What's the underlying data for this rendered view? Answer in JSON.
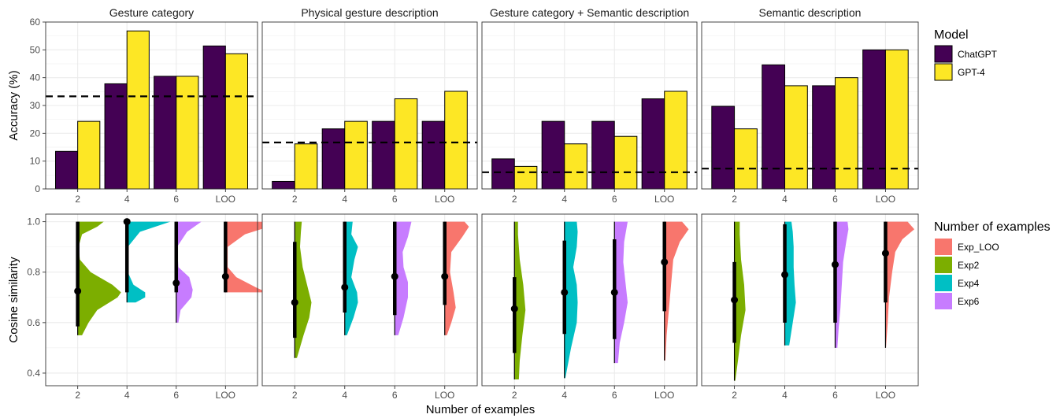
{
  "xlabel": "Number of examples",
  "legend_model": {
    "title": "Model",
    "items": [
      {
        "label": "ChatGPT",
        "color": "#440154"
      },
      {
        "label": "GPT-4",
        "color": "#FDE725"
      }
    ]
  },
  "legend_examples": {
    "title": "Number of examples",
    "items": [
      {
        "label": "Exp_LOO",
        "color": "#F8766D"
      },
      {
        "label": "Exp2",
        "color": "#7CAE00"
      },
      {
        "label": "Exp4",
        "color": "#00BFC4"
      },
      {
        "label": "Exp6",
        "color": "#C77CFF"
      }
    ]
  },
  "chart_data": [
    {
      "type": "bar",
      "ylabel": "Accuracy (%)",
      "ylim": [
        0,
        60
      ],
      "yticks": [
        0,
        10,
        20,
        30,
        40,
        50,
        60
      ],
      "categories": [
        "2",
        "4",
        "6",
        "LOO"
      ],
      "grid": true,
      "legend_position": "right",
      "panels": [
        {
          "title": "Gesture category",
          "baseline": 33.3,
          "series": [
            {
              "name": "ChatGPT",
              "values": [
                13.5,
                37.8,
                40.5,
                51.4
              ]
            },
            {
              "name": "GPT-4",
              "values": [
                24.3,
                56.8,
                40.5,
                48.6
              ]
            }
          ]
        },
        {
          "title": "Physical gesture description",
          "baseline": 16.7,
          "series": [
            {
              "name": "ChatGPT",
              "values": [
                2.7,
                21.6,
                24.3,
                24.3
              ]
            },
            {
              "name": "GPT-4",
              "values": [
                16.2,
                24.3,
                32.4,
                35.1
              ]
            }
          ]
        },
        {
          "title": "Gesture category + Semantic description",
          "baseline": 6.0,
          "series": [
            {
              "name": "ChatGPT",
              "values": [
                10.8,
                24.3,
                24.3,
                32.4
              ]
            },
            {
              "name": "GPT-4",
              "values": [
                8.1,
                16.2,
                18.9,
                35.1
              ]
            }
          ]
        },
        {
          "title": "Semantic description",
          "baseline": 7.3,
          "series": [
            {
              "name": "ChatGPT",
              "values": [
                29.7,
                44.6,
                37.1,
                50.0
              ]
            },
            {
              "name": "GPT-4",
              "values": [
                21.6,
                37.1,
                40.0,
                50.0
              ]
            }
          ]
        }
      ]
    },
    {
      "type": "half-violin with point-range",
      "ylabel": "Cosine similarity",
      "ylim": [
        0.35,
        1.03
      ],
      "yticks": [
        0.4,
        0.6,
        0.8,
        1.0
      ],
      "yticklabels": [
        "0.4",
        "0.6",
        "0.8",
        "1.0"
      ],
      "categories": [
        "2",
        "4",
        "6",
        "LOO"
      ],
      "grid": true,
      "legend_position": "right",
      "panels": [
        {
          "title": "Gesture category",
          "groups": [
            {
              "category": "2",
              "series": "Exp2",
              "median": 0.725,
              "low": 0.585,
              "high": 1.0,
              "vmin": 0.55,
              "vmax": 1.0,
              "density": [
                [
                  0.55,
                  0.1
                ],
                [
                  0.6,
                  0.25
                ],
                [
                  0.65,
                  0.45
                ],
                [
                  0.7,
                  0.92
                ],
                [
                  0.72,
                  1.0
                ],
                [
                  0.75,
                  0.8
                ],
                [
                  0.8,
                  0.3
                ],
                [
                  0.85,
                  0.05
                ],
                [
                  0.9,
                  0.02
                ],
                [
                  0.95,
                  0.1
                ],
                [
                  0.98,
                  0.45
                ],
                [
                  1.0,
                  0.6
                ]
              ]
            },
            {
              "category": "4",
              "series": "Exp4",
              "median": 1.0,
              "low": 0.72,
              "high": 1.0,
              "vmin": 0.68,
              "vmax": 1.0,
              "density": [
                [
                  0.68,
                  0.2
                ],
                [
                  0.7,
                  0.42
                ],
                [
                  0.72,
                  0.42
                ],
                [
                  0.75,
                  0.15
                ],
                [
                  0.8,
                  0.02
                ],
                [
                  0.9,
                  0.02
                ],
                [
                  0.96,
                  0.3
                ],
                [
                  1.0,
                  1.0
                ]
              ]
            },
            {
              "category": "6",
              "series": "Exp6",
              "median": 0.757,
              "low": 0.72,
              "high": 1.0,
              "vmin": 0.6,
              "vmax": 1.0,
              "density": [
                [
                  0.6,
                  0.05
                ],
                [
                  0.65,
                  0.1
                ],
                [
                  0.7,
                  0.35
                ],
                [
                  0.73,
                  0.38
                ],
                [
                  0.78,
                  0.3
                ],
                [
                  0.82,
                  0.05
                ],
                [
                  0.9,
                  0.02
                ],
                [
                  0.96,
                  0.25
                ],
                [
                  1.0,
                  0.58
                ]
              ]
            },
            {
              "category": "LOO",
              "series": "Exp_LOO",
              "median": 0.783,
              "low": 0.72,
              "high": 1.0,
              "vmin": 0.72,
              "vmax": 1.0,
              "density": [
                [
                  0.72,
                  0.95
                ],
                [
                  0.74,
                  0.7
                ],
                [
                  0.78,
                  0.25
                ],
                [
                  0.82,
                  0.05
                ],
                [
                  0.9,
                  0.05
                ],
                [
                  0.95,
                  0.45
                ],
                [
                  0.98,
                  1.0
                ],
                [
                  1.0,
                  0.9
                ]
              ]
            }
          ]
        },
        {
          "title": "Physical gesture description",
          "groups": [
            {
              "category": "2",
              "series": "Exp2",
              "median": 0.68,
              "low": 0.54,
              "high": 0.92,
              "vmin": 0.46,
              "vmax": 1.0,
              "density": [
                [
                  0.46,
                  0.05
                ],
                [
                  0.55,
                  0.2
                ],
                [
                  0.62,
                  0.33
                ],
                [
                  0.68,
                  0.38
                ],
                [
                  0.75,
                  0.28
                ],
                [
                  0.82,
                  0.18
                ],
                [
                  0.9,
                  0.12
                ],
                [
                  0.96,
                  0.14
                ],
                [
                  1.0,
                  0.16
                ]
              ]
            },
            {
              "category": "4",
              "series": "Exp4",
              "median": 0.74,
              "low": 0.64,
              "high": 1.0,
              "vmin": 0.55,
              "vmax": 1.0,
              "density": [
                [
                  0.55,
                  0.05
                ],
                [
                  0.62,
                  0.2
                ],
                [
                  0.68,
                  0.3
                ],
                [
                  0.72,
                  0.28
                ],
                [
                  0.78,
                  0.15
                ],
                [
                  0.85,
                  0.22
                ],
                [
                  0.9,
                  0.3
                ],
                [
                  0.95,
                  0.15
                ],
                [
                  1.0,
                  0.18
                ]
              ]
            },
            {
              "category": "6",
              "series": "Exp6",
              "median": 0.783,
              "low": 0.63,
              "high": 1.0,
              "vmin": 0.55,
              "vmax": 1.0,
              "density": [
                [
                  0.55,
                  0.08
                ],
                [
                  0.62,
                  0.2
                ],
                [
                  0.7,
                  0.3
                ],
                [
                  0.76,
                  0.3
                ],
                [
                  0.82,
                  0.2
                ],
                [
                  0.88,
                  0.18
                ],
                [
                  0.94,
                  0.3
                ],
                [
                  1.0,
                  0.38
                ]
              ]
            },
            {
              "category": "LOO",
              "series": "Exp_LOO",
              "median": 0.783,
              "low": 0.67,
              "high": 1.0,
              "vmin": 0.55,
              "vmax": 1.0,
              "density": [
                [
                  0.55,
                  0.05
                ],
                [
                  0.6,
                  0.15
                ],
                [
                  0.66,
                  0.25
                ],
                [
                  0.72,
                  0.2
                ],
                [
                  0.8,
                  0.12
                ],
                [
                  0.88,
                  0.15
                ],
                [
                  0.94,
                  0.4
                ],
                [
                  0.98,
                  0.55
                ],
                [
                  1.0,
                  0.45
                ]
              ]
            }
          ]
        },
        {
          "title": "Gesture category + Semantic description",
          "groups": [
            {
              "category": "2",
              "series": "Exp2",
              "median": 0.655,
              "low": 0.48,
              "high": 0.78,
              "vmin": 0.375,
              "vmax": 1.0,
              "density": [
                [
                  0.375,
                  0.1
                ],
                [
                  0.45,
                  0.12
                ],
                [
                  0.55,
                  0.18
                ],
                [
                  0.65,
                  0.25
                ],
                [
                  0.75,
                  0.2
                ],
                [
                  0.85,
                  0.12
                ],
                [
                  0.95,
                  0.08
                ],
                [
                  1.0,
                  0.08
                ]
              ]
            },
            {
              "category": "4",
              "series": "Exp4",
              "median": 0.72,
              "low": 0.555,
              "high": 0.925,
              "vmin": 0.38,
              "vmax": 1.0,
              "density": [
                [
                  0.38,
                  0.02
                ],
                [
                  0.5,
                  0.15
                ],
                [
                  0.6,
                  0.28
                ],
                [
                  0.68,
                  0.3
                ],
                [
                  0.75,
                  0.28
                ],
                [
                  0.82,
                  0.2
                ],
                [
                  0.9,
                  0.28
                ],
                [
                  0.96,
                  0.3
                ],
                [
                  1.0,
                  0.28
                ]
              ]
            },
            {
              "category": "6",
              "series": "Exp6",
              "median": 0.72,
              "low": 0.535,
              "high": 0.93,
              "vmin": 0.44,
              "vmax": 1.0,
              "density": [
                [
                  0.44,
                  0.08
                ],
                [
                  0.52,
                  0.12
                ],
                [
                  0.6,
                  0.22
                ],
                [
                  0.68,
                  0.3
                ],
                [
                  0.76,
                  0.25
                ],
                [
                  0.84,
                  0.2
                ],
                [
                  0.92,
                  0.22
                ],
                [
                  1.0,
                  0.3
                ]
              ]
            },
            {
              "category": "LOO",
              "series": "Exp_LOO",
              "median": 0.84,
              "low": 0.645,
              "high": 1.0,
              "vmin": 0.45,
              "vmax": 1.0,
              "density": [
                [
                  0.45,
                  0.02
                ],
                [
                  0.55,
                  0.05
                ],
                [
                  0.65,
                  0.1
                ],
                [
                  0.75,
                  0.15
                ],
                [
                  0.85,
                  0.2
                ],
                [
                  0.92,
                  0.35
                ],
                [
                  0.97,
                  0.55
                ],
                [
                  1.0,
                  0.4
                ]
              ]
            }
          ]
        },
        {
          "title": "Semantic description",
          "groups": [
            {
              "category": "2",
              "series": "Exp2",
              "median": 0.69,
              "low": 0.52,
              "high": 0.84,
              "vmin": 0.37,
              "vmax": 1.0,
              "density": [
                [
                  0.37,
                  0.02
                ],
                [
                  0.45,
                  0.08
                ],
                [
                  0.55,
                  0.15
                ],
                [
                  0.65,
                  0.25
                ],
                [
                  0.75,
                  0.22
                ],
                [
                  0.85,
                  0.15
                ],
                [
                  0.95,
                  0.12
                ],
                [
                  1.0,
                  0.12
                ]
              ]
            },
            {
              "category": "4",
              "series": "Exp4",
              "median": 0.79,
              "low": 0.6,
              "high": 0.99,
              "vmin": 0.51,
              "vmax": 1.0,
              "density": [
                [
                  0.51,
                  0.1
                ],
                [
                  0.6,
                  0.18
                ],
                [
                  0.68,
                  0.25
                ],
                [
                  0.75,
                  0.22
                ],
                [
                  0.82,
                  0.2
                ],
                [
                  0.9,
                  0.2
                ],
                [
                  0.96,
                  0.18
                ],
                [
                  1.0,
                  0.15
                ]
              ]
            },
            {
              "category": "6",
              "series": "Exp6",
              "median": 0.83,
              "low": 0.6,
              "high": 1.0,
              "vmin": 0.5,
              "vmax": 1.0,
              "density": [
                [
                  0.5,
                  0.05
                ],
                [
                  0.58,
                  0.08
                ],
                [
                  0.66,
                  0.12
                ],
                [
                  0.75,
                  0.15
                ],
                [
                  0.84,
                  0.18
                ],
                [
                  0.92,
                  0.25
                ],
                [
                  0.97,
                  0.3
                ],
                [
                  1.0,
                  0.28
                ]
              ]
            },
            {
              "category": "LOO",
              "series": "Exp_LOO",
              "median": 0.875,
              "low": 0.68,
              "high": 1.0,
              "vmin": 0.5,
              "vmax": 1.0,
              "density": [
                [
                  0.5,
                  0.01
                ],
                [
                  0.6,
                  0.05
                ],
                [
                  0.7,
                  0.08
                ],
                [
                  0.8,
                  0.15
                ],
                [
                  0.88,
                  0.22
                ],
                [
                  0.93,
                  0.38
                ],
                [
                  0.97,
                  0.65
                ],
                [
                  1.0,
                  0.5
                ]
              ]
            }
          ]
        }
      ]
    }
  ]
}
